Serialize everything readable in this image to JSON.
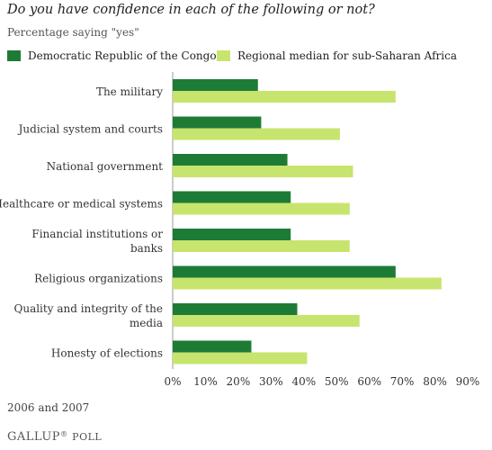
{
  "chart_data": {
    "type": "bar",
    "orientation": "horizontal",
    "title": "Do you have confidence in each of the following or not?",
    "subtitle": "Percentage saying \"yes\"",
    "categories": [
      "The military",
      "Judicial system and courts",
      "National government",
      "Healthcare or medical systems",
      "Financial institutions or banks",
      "Religious organizations",
      "Quality and integrity of the media",
      "Honesty of elections"
    ],
    "series": [
      {
        "name": "Democratic Republic of the Congo",
        "color": "#1e7b36",
        "values": [
          26,
          27,
          35,
          36,
          36,
          68,
          38,
          24
        ]
      },
      {
        "name": "Regional median for sub-Saharan Africa",
        "color": "#c7e46e",
        "values": [
          68,
          51,
          55,
          54,
          54,
          82,
          57,
          41
        ]
      }
    ],
    "xlim": [
      0,
      90
    ],
    "xticks": [
      "0%",
      "10%",
      "20%",
      "30%",
      "40%",
      "50%",
      "60%",
      "70%",
      "80%",
      "90%"
    ],
    "grid": false,
    "legend_position": "top"
  },
  "footnote": "2006 and 2007",
  "brand": {
    "main": "GALLUP",
    "sub": "POLL",
    "mark": "®"
  }
}
